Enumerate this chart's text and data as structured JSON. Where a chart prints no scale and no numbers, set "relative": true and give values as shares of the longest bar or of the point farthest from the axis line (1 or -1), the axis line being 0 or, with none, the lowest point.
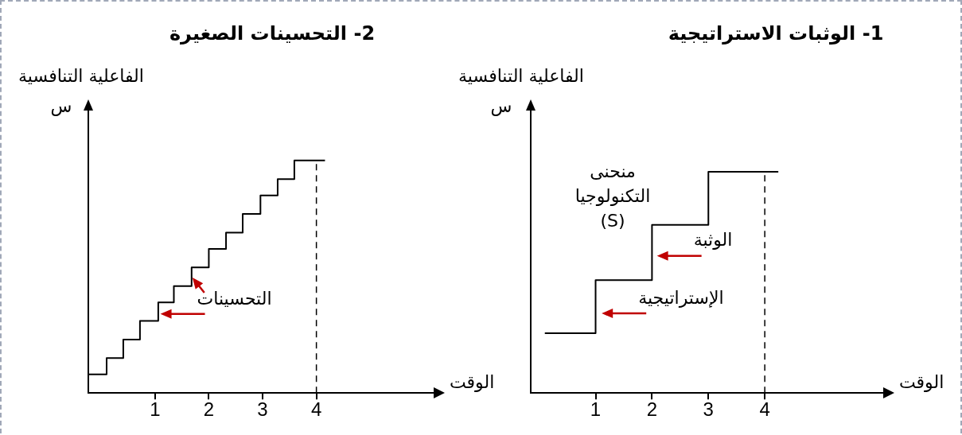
{
  "chart_data": [
    {
      "type": "step",
      "title": "1- الوثبات الاستراتيجية",
      "xlabel": "الوقت",
      "ylabel": "الفاعلية التنافسية",
      "relative": true,
      "marker": "none",
      "line_style": "solid",
      "grid": false,
      "legend": false,
      "xlim": [
        -0.15,
        6.1
      ],
      "xticks": [
        1,
        2,
        3,
        4
      ],
      "series": [
        {
          "color": "#000000",
          "x": [
            0.1,
            1,
            2,
            3,
            4.24
          ],
          "values": [
            0.27,
            0.51,
            0.76,
            1,
            1
          ]
        }
      ],
      "ref_lines": [
        {
          "axis": "x",
          "value": 4,
          "line_style": "dashed",
          "color": "#000000"
        }
      ],
      "annotations": [
        "س",
        "منحنى التكنولوجيا (S)",
        {
          "text": "الوثبة",
          "x": 2.06,
          "y": 0.62
        },
        {
          "text": "الإستراتيجية",
          "x": 1.08,
          "y": 0.36
        }
      ]
    },
    {
      "type": "step",
      "title": "2- التحسينات الصغيرة",
      "xlabel": "الوقت",
      "ylabel": "الفاعلية التنافسية",
      "relative": true,
      "marker": "none",
      "line_style": "solid",
      "grid": false,
      "legend": false,
      "xlim": [
        -0.24,
        6.18
      ],
      "xticks": [
        1,
        2,
        3,
        4
      ],
      "series": [
        {
          "color": "#000000",
          "x": [
            -0.24,
            0.1,
            0.41,
            0.72,
            1.06,
            1.35,
            1.68,
            2.0,
            2.32,
            2.63,
            2.96,
            3.28,
            3.59,
            4.16
          ],
          "values": [
            0.08,
            0.15,
            0.23,
            0.31,
            0.39,
            0.46,
            0.54,
            0.62,
            0.69,
            0.77,
            0.85,
            0.92,
            1,
            1
          ]
        }
      ],
      "ref_lines": [
        {
          "axis": "x",
          "value": 4,
          "line_style": "dashed",
          "color": "#000000"
        }
      ],
      "annotations": [
        "س",
        {
          "text": "التحسينات",
          "x": 1.07,
          "y": 0.34
        }
      ]
    }
  ]
}
